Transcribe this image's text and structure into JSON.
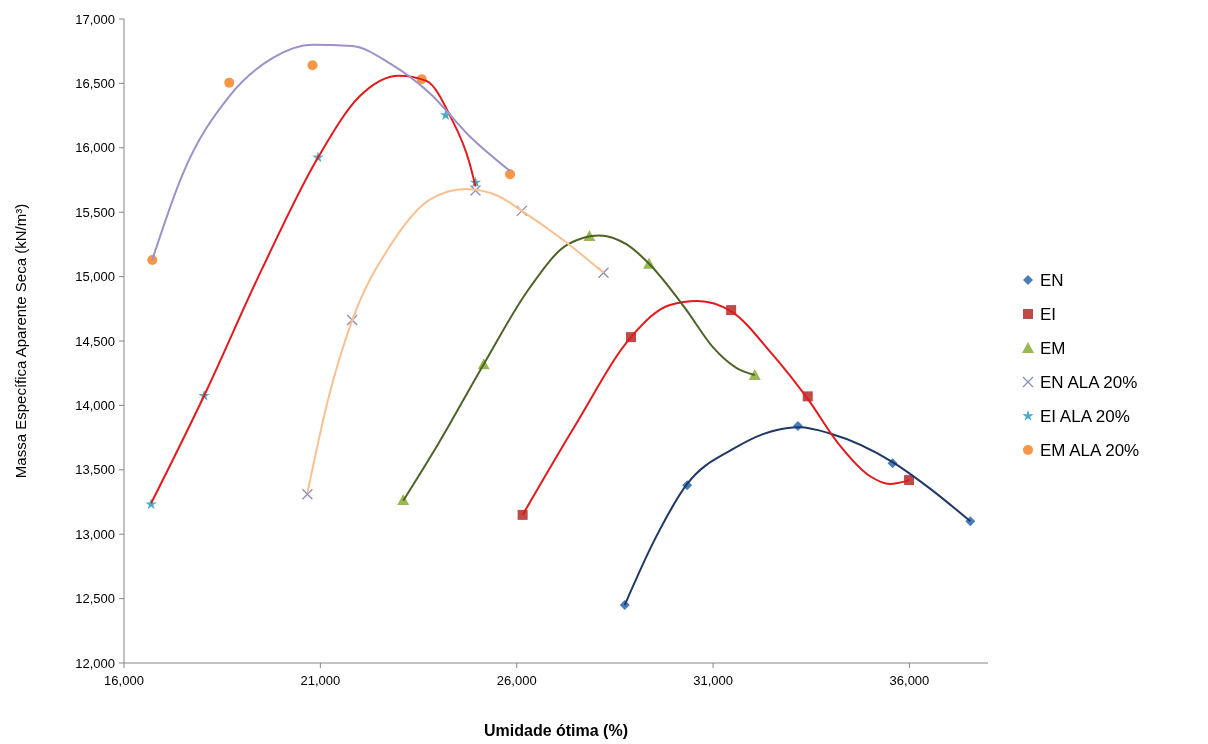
{
  "chart_data": {
    "type": "scatter",
    "xlabel": "Umidade ótima (%)",
    "ylabel": "Massa Específica  Aparente Seca (kN/m³)",
    "xlim": [
      16000,
      38000
    ],
    "ylim": [
      12000,
      17000
    ],
    "xticks": [
      {
        "value": 16000,
        "label": "16,000"
      },
      {
        "value": 21000,
        "label": "21,000"
      },
      {
        "value": 26000,
        "label": "26,000"
      },
      {
        "value": 31000,
        "label": "31,000"
      },
      {
        "value": 36000,
        "label": "36,000"
      }
    ],
    "yticks": [
      {
        "value": 12000,
        "label": "12,000"
      },
      {
        "value": 12500,
        "label": "12,500"
      },
      {
        "value": 13000,
        "label": "13,000"
      },
      {
        "value": 13500,
        "label": "13,500"
      },
      {
        "value": 14000,
        "label": "14,000"
      },
      {
        "value": 14500,
        "label": "14,500"
      },
      {
        "value": 15000,
        "label": "15,000"
      },
      {
        "value": 15500,
        "label": "15,500"
      },
      {
        "value": 16000,
        "label": "16,000"
      },
      {
        "value": 16500,
        "label": "16,500"
      },
      {
        "value": 17000,
        "label": "17,000"
      }
    ],
    "grid": false,
    "legend": "right",
    "series": [
      {
        "type": "line",
        "marker": "none",
        "color": "#1f3864",
        "x": [
          28750,
          29500,
          30340,
          31500,
          32500,
          33200,
          34000,
          35570,
          36500,
          37550
        ],
        "values": [
          12450,
          12950,
          13390,
          13660,
          13800,
          13830,
          13780,
          13560,
          13360,
          13100
        ]
      },
      {
        "type": "line",
        "marker": "none",
        "color": "#e31a1c",
        "x": [
          26150,
          27500,
          28910,
          29900,
          30600,
          31460,
          32500,
          33410,
          34200,
          35000,
          35500,
          35990
        ],
        "values": [
          13150,
          13850,
          14530,
          14780,
          14810,
          14730,
          14400,
          14050,
          13700,
          13450,
          13390,
          13420
        ]
      },
      {
        "type": "line",
        "marker": "none",
        "color": "#4f6228",
        "x": [
          23110,
          24000,
          25160,
          26300,
          27300,
          28100,
          28800,
          29370,
          30300,
          31000,
          31600,
          32060
        ],
        "values": [
          13260,
          13700,
          14320,
          14900,
          15250,
          15320,
          15250,
          15100,
          14750,
          14450,
          14290,
          14236
        ]
      },
      {
        "type": "line",
        "marker": "none",
        "color": "#fac090",
        "x": [
          20670,
          21200,
          21810,
          22800,
          23800,
          24700,
          25500,
          26130,
          27200,
          28210
        ],
        "values": [
          13320,
          14050,
          14660,
          15250,
          15600,
          15680,
          15630,
          15510,
          15280,
          15030
        ]
      },
      {
        "type": "line",
        "marker": "none",
        "color": "#e31a1c",
        "x": [
          16690,
          18040,
          19500,
          20940,
          22000,
          23000,
          23700,
          24300,
          24800,
          24950
        ],
        "values": [
          13240,
          14075,
          15050,
          15925,
          16400,
          16560,
          16520,
          16250,
          15880,
          15700
        ]
      },
      {
        "type": "line",
        "marker": "none",
        "color": "#9e90c8",
        "x": [
          16720,
          17500,
          18680,
          19800,
          20800,
          21800,
          22800,
          23800,
          24800,
          25830
        ],
        "values": [
          15130,
          15800,
          16400,
          16700,
          16800,
          16790,
          16650,
          16420,
          16090,
          15820
        ]
      },
      {
        "name": "EN",
        "marker": "diamond",
        "color": "#4a7ebb",
        "x": [
          28750,
          30340,
          33160,
          35570,
          37550
        ],
        "values": [
          12450,
          13380,
          13840,
          13550,
          13100
        ]
      },
      {
        "name": "EI",
        "marker": "square",
        "color": "#be4b48",
        "x": [
          26150,
          28910,
          31460,
          33410,
          35990
        ],
        "values": [
          13150,
          14530,
          14740,
          14070,
          13420
        ]
      },
      {
        "name": "EM",
        "marker": "triangle",
        "color": "#98b954",
        "x": [
          23110,
          25160,
          27850,
          29370,
          32060
        ],
        "values": [
          13265,
          14320,
          15315,
          15100,
          14236
        ]
      },
      {
        "name": "EN ALA 20%",
        "marker": "cross",
        "color": "#8b8fb8",
        "x": [
          20670,
          21810,
          24950,
          26130,
          28210
        ],
        "values": [
          13310,
          14663,
          15669,
          15510,
          15030
        ]
      },
      {
        "name": "EI ALA 20%",
        "marker": "star",
        "color": "#4bacc6",
        "x": [
          16690,
          18040,
          20940,
          24190,
          24950
        ],
        "values": [
          13232,
          14075,
          15925,
          16253,
          15730
        ]
      },
      {
        "name": "EM ALA 20%",
        "marker": "circle",
        "color": "#f79646",
        "x": [
          16720,
          18680,
          20800,
          23580,
          25830
        ],
        "values": [
          15129,
          16506,
          16641,
          16533,
          15794
        ]
      }
    ]
  }
}
